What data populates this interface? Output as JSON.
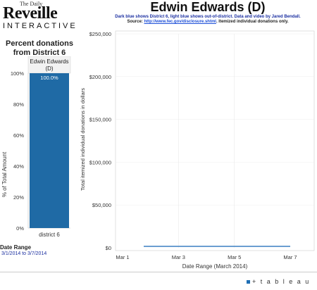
{
  "logo": {
    "small": "The Daily",
    "main": "Reveille",
    "sub": "INTERACTIVE"
  },
  "left_panel": {
    "title_line1": "Percent donations",
    "title_line2": "from District 6"
  },
  "header": {
    "title": "Edwin Edwards (D)",
    "subtitle_line1": "Dark blue shows District 6, light blue shows out-of-district. Data and video by Jared Bendall.",
    "subtitle_source_label": "Source:",
    "subtitle_source_link": "http://www.fec.gov/disclosure.shtml",
    "subtitle_source_rest": ". Itemized individual donations only."
  },
  "chart_data": [
    {
      "type": "bar",
      "title": "",
      "column_header_line1": "Edwin Edwards",
      "column_header_line2": "(D)",
      "categories": [
        "district 6"
      ],
      "values": [
        100
      ],
      "data_labels": [
        "100.0%"
      ],
      "ylabel": "% of Total Amount",
      "ylim": [
        0,
        100
      ],
      "yticks": [
        "0%",
        "20%",
        "40%",
        "60%",
        "80%",
        "100%"
      ],
      "colors": {
        "bar": "#1f6aa5"
      }
    },
    {
      "type": "line",
      "title": "",
      "xlabel": "Date Range (March 2014)",
      "ylabel": "Total itemized individual donations in dollars",
      "ylim": [
        0,
        250000
      ],
      "yticks": [
        "$0",
        "$50,000",
        "$100,000",
        "$150,000",
        "$200,000",
        "$250,000"
      ],
      "xticks": [
        "Mar 1",
        "Mar 3",
        "Mar 5",
        "Mar 7"
      ],
      "series": [
        {
          "x": [
            "Mar 1",
            "Mar 7"
          ],
          "values": [
            0,
            0
          ],
          "color": "#3a7fc2"
        }
      ]
    }
  ],
  "footer": {
    "date_range_label": "Date Range",
    "date_range_value": "3/1/2014 to 3/7/2014"
  },
  "branding": {
    "tableau": "+ t a b l e a u"
  }
}
